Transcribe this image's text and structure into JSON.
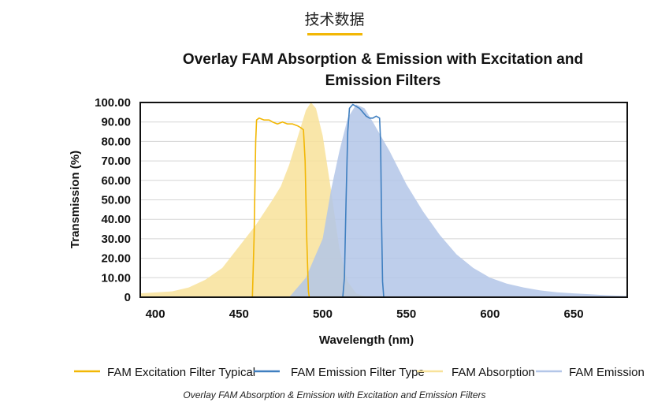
{
  "section_heading": "技术数据",
  "caption": "Overlay FAM Absorption & Emission with Excitation and Emission Filters",
  "chart_data": {
    "type": "area",
    "title_lines": [
      "Overlay FAM Absorption & Emission with Excitation and",
      "Emission Filters"
    ],
    "xlabel": "Wavelength (nm)",
    "ylabel": "Transmission (%)",
    "xlim": [
      391,
      682
    ],
    "ylim": [
      0,
      100
    ],
    "x_ticks": [
      400,
      450,
      500,
      550,
      600,
      650
    ],
    "y_ticks": [
      0,
      10,
      20,
      30,
      40,
      50,
      60,
      70,
      80,
      90,
      100
    ],
    "y_tick_labels": [
      "0",
      "10.00",
      "20.00",
      "30.00",
      "40.00",
      "50.00",
      "60.00",
      "70.00",
      "80.00",
      "90.00",
      "100.00"
    ],
    "grid": "horizontal",
    "legend_position": "bottom",
    "colors": {
      "excitation": "#f2b705",
      "emission_filter": "#3f7fc0",
      "absorption": "#f8e29a",
      "emission": "#b3c6e8"
    },
    "series": [
      {
        "name": "FAM Excitation Filter Typical",
        "kind": "line",
        "color": "#f2b705",
        "points": [
          [
            458,
            0
          ],
          [
            459,
            30
          ],
          [
            460,
            80
          ],
          [
            460.5,
            91
          ],
          [
            462,
            92
          ],
          [
            465,
            91
          ],
          [
            468,
            91
          ],
          [
            470,
            90
          ],
          [
            473,
            89
          ],
          [
            476,
            90
          ],
          [
            479,
            89
          ],
          [
            482,
            89
          ],
          [
            485,
            88
          ],
          [
            487,
            87
          ],
          [
            488.5,
            86
          ],
          [
            489.5,
            70
          ],
          [
            490.5,
            30
          ],
          [
            491.5,
            3
          ],
          [
            492,
            0
          ]
        ]
      },
      {
        "name": "FAM Emission Filter Type",
        "kind": "line",
        "color": "#3f7fc0",
        "points": [
          [
            512,
            0
          ],
          [
            513,
            10
          ],
          [
            514,
            50
          ],
          [
            515,
            85
          ],
          [
            516,
            97
          ],
          [
            518,
            99
          ],
          [
            520,
            98
          ],
          [
            522,
            97
          ],
          [
            524,
            95
          ],
          [
            526,
            93
          ],
          [
            528,
            92
          ],
          [
            530,
            92
          ],
          [
            532,
            93
          ],
          [
            534,
            92
          ],
          [
            534.6,
            80
          ],
          [
            535.2,
            40
          ],
          [
            535.8,
            8
          ],
          [
            536.5,
            0
          ]
        ]
      },
      {
        "name": "FAM Absorption",
        "kind": "area",
        "color": "#f8e29a",
        "points": [
          [
            391,
            2
          ],
          [
            410,
            3
          ],
          [
            420,
            5
          ],
          [
            430,
            9
          ],
          [
            440,
            15
          ],
          [
            450,
            26
          ],
          [
            460,
            37
          ],
          [
            470,
            50
          ],
          [
            475,
            57
          ],
          [
            480,
            68
          ],
          [
            485,
            82
          ],
          [
            490,
            96
          ],
          [
            493,
            100
          ],
          [
            496,
            97
          ],
          [
            500,
            83
          ],
          [
            505,
            55
          ],
          [
            510,
            25
          ],
          [
            515,
            8
          ],
          [
            520,
            2
          ],
          [
            525,
            0.5
          ],
          [
            530,
            0
          ]
        ]
      },
      {
        "name": "FAM Emission",
        "kind": "area",
        "color": "#b3c6e8",
        "points": [
          [
            480,
            0
          ],
          [
            490,
            10
          ],
          [
            500,
            30
          ],
          [
            505,
            55
          ],
          [
            510,
            75
          ],
          [
            515,
            92
          ],
          [
            520,
            99
          ],
          [
            525,
            97
          ],
          [
            530,
            90
          ],
          [
            540,
            75
          ],
          [
            550,
            58
          ],
          [
            560,
            44
          ],
          [
            570,
            32
          ],
          [
            580,
            22
          ],
          [
            590,
            15
          ],
          [
            600,
            10
          ],
          [
            610,
            7
          ],
          [
            620,
            5
          ],
          [
            630,
            3.5
          ],
          [
            640,
            2.5
          ],
          [
            650,
            2
          ],
          [
            660,
            1.5
          ],
          [
            670,
            1
          ],
          [
            682,
            0.6
          ]
        ]
      }
    ]
  }
}
